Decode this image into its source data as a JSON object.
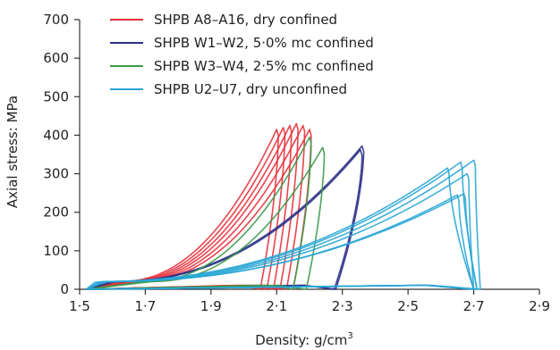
{
  "chart_data": {
    "type": "line",
    "xlabel": "Density: g/cm",
    "xlabel_superscript": "3",
    "ylabel": "Axial stress: MPa",
    "xlim": [
      1.5,
      2.9
    ],
    "ylim": [
      0,
      700
    ],
    "x_ticks": [
      1.5,
      1.7,
      1.9,
      2.1,
      2.3,
      2.5,
      2.7,
      2.9
    ],
    "x_tick_labels": [
      "1·5",
      "1·7",
      "1·9",
      "2·1",
      "2·3",
      "2·5",
      "2·7",
      "2·9"
    ],
    "y_ticks": [
      0,
      100,
      200,
      300,
      400,
      500,
      600,
      700
    ],
    "y_tick_labels": [
      "0",
      "100",
      "200",
      "300",
      "400",
      "500",
      "600",
      "700"
    ],
    "grid": false,
    "legend_position": "top-left",
    "series": [
      {
        "name": "SHPB A8–A16, dry confined",
        "color": "#e8303a",
        "curves": [
          {
            "peak_x": 2.1,
            "peak_y": 415,
            "start_x": 1.62,
            "end_x": 2.05
          },
          {
            "peak_x": 2.12,
            "peak_y": 420,
            "start_x": 1.63,
            "end_x": 2.07
          },
          {
            "peak_x": 2.14,
            "peak_y": 425,
            "start_x": 1.64,
            "end_x": 2.09
          },
          {
            "peak_x": 2.16,
            "peak_y": 430,
            "start_x": 1.65,
            "end_x": 2.11
          },
          {
            "peak_x": 2.18,
            "peak_y": 425,
            "start_x": 1.66,
            "end_x": 2.13
          },
          {
            "peak_x": 2.2,
            "peak_y": 415,
            "start_x": 1.67,
            "end_x": 2.15
          }
        ]
      },
      {
        "name": "SHPB W1–W2, 5·0% mc confined",
        "color": "#2b2f86",
        "curves": [
          {
            "peak_x": 2.36,
            "peak_y": 372,
            "start_x": 1.6,
            "end_x": 2.28
          },
          {
            "peak_x": 2.355,
            "peak_y": 362,
            "start_x": 1.61,
            "end_x": 2.275
          }
        ]
      },
      {
        "name": "SHPB W3–W4, 2·5% mc confined",
        "color": "#3a9a4a",
        "curves": [
          {
            "peak_x": 2.2,
            "peak_y": 395,
            "start_x": 1.7,
            "end_x": 2.15
          },
          {
            "peak_x": 2.24,
            "peak_y": 368,
            "start_x": 1.72,
            "end_x": 2.19
          }
        ]
      },
      {
        "name": "SHPB U2–U7, dry unconfined",
        "color": "#2aa6d6",
        "curves": [
          {
            "peak_x": 2.62,
            "peak_y": 315,
            "start_x": 1.55,
            "end_x": 2.7
          },
          {
            "peak_x": 2.66,
            "peak_y": 330,
            "start_x": 1.56,
            "end_x": 2.71
          },
          {
            "peak_x": 2.7,
            "peak_y": 335,
            "start_x": 1.57,
            "end_x": 2.72
          },
          {
            "peak_x": 2.68,
            "peak_y": 300,
            "start_x": 1.58,
            "end_x": 2.7
          },
          {
            "peak_x": 2.67,
            "peak_y": 248,
            "start_x": 1.57,
            "end_x": 2.71
          },
          {
            "peak_x": 2.65,
            "peak_y": 245,
            "start_x": 1.58,
            "end_x": 2.7
          }
        ]
      }
    ]
  }
}
